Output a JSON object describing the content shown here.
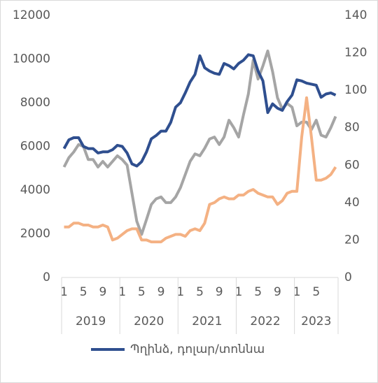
{
  "chart_data": {
    "type": "line",
    "categories": [
      "1",
      null,
      null,
      null,
      "5",
      null,
      null,
      null,
      "9",
      null,
      null,
      null,
      "1",
      null,
      null,
      null,
      "5",
      null,
      null,
      null,
      "9",
      null,
      null,
      null,
      "1",
      null,
      null,
      null,
      "5",
      null,
      null,
      null,
      "9",
      null,
      null,
      null,
      "1",
      null,
      null,
      null,
      "5",
      null,
      null,
      null,
      "9",
      null,
      null,
      null,
      "1",
      null,
      null,
      null,
      "5",
      null,
      null,
      null,
      null
    ],
    "year_groups": [
      "2019",
      "2020",
      "2021",
      "2022",
      "2023"
    ],
    "series": [
      {
        "name": "Պղինձ, դոլար/տոննա",
        "color": "#2f4f8f",
        "values": [
          5900,
          6300,
          6400,
          6400,
          6000,
          5900,
          5900,
          5700,
          5750,
          5750,
          5850,
          6050,
          6000,
          5700,
          5200,
          5100,
          5300,
          5750,
          6350,
          6500,
          6700,
          6700,
          7100,
          7800,
          8000,
          8450,
          8950,
          9300,
          10150,
          9600,
          9450,
          9350,
          9300,
          9800,
          9700,
          9550,
          9800,
          9950,
          10200,
          10150,
          9450,
          9000,
          7550,
          7950,
          7750,
          7650,
          8050,
          8350,
          9050,
          9000,
          8900,
          8850,
          8800,
          8250,
          8400,
          8450,
          8350
        ]
      },
      {
        "color": "#a5a5a5",
        "axis": "y2",
        "values": [
          59,
          64,
          67,
          71,
          70,
          63,
          63,
          59,
          62,
          59,
          62,
          65,
          63,
          60,
          45,
          30,
          23,
          31,
          39,
          42,
          43,
          40,
          40,
          43,
          48,
          55,
          62,
          66,
          65,
          69,
          74,
          75,
          71,
          75,
          84,
          80,
          75,
          87,
          98,
          116,
          106,
          113,
          121,
          110,
          96,
          90,
          93,
          91,
          81,
          83,
          83,
          79,
          84,
          76,
          75,
          80,
          86
        ]
      },
      {
        "color": "#f4b183",
        "axis": "y2",
        "values": [
          27,
          27,
          29,
          29,
          28,
          28,
          27,
          27,
          28,
          27,
          20,
          21,
          23,
          25,
          26,
          26,
          20,
          20,
          19,
          19,
          19,
          21,
          22,
          23,
          23,
          22,
          25,
          26,
          25,
          29,
          39,
          40,
          42,
          43,
          42,
          42,
          44,
          44,
          46,
          47,
          45,
          44,
          43,
          43,
          39,
          41,
          45,
          46,
          46,
          75,
          96,
          75,
          52,
          52,
          53,
          55,
          59
        ]
      }
    ],
    "ylim": [
      0,
      12000
    ],
    "yticks": [
      0,
      2000,
      4000,
      6000,
      8000,
      10000,
      12000
    ],
    "y2lim": [
      0,
      140
    ],
    "y2ticks": [
      0,
      20,
      40,
      60,
      80,
      100,
      120,
      140
    ],
    "legend": "bottom"
  }
}
